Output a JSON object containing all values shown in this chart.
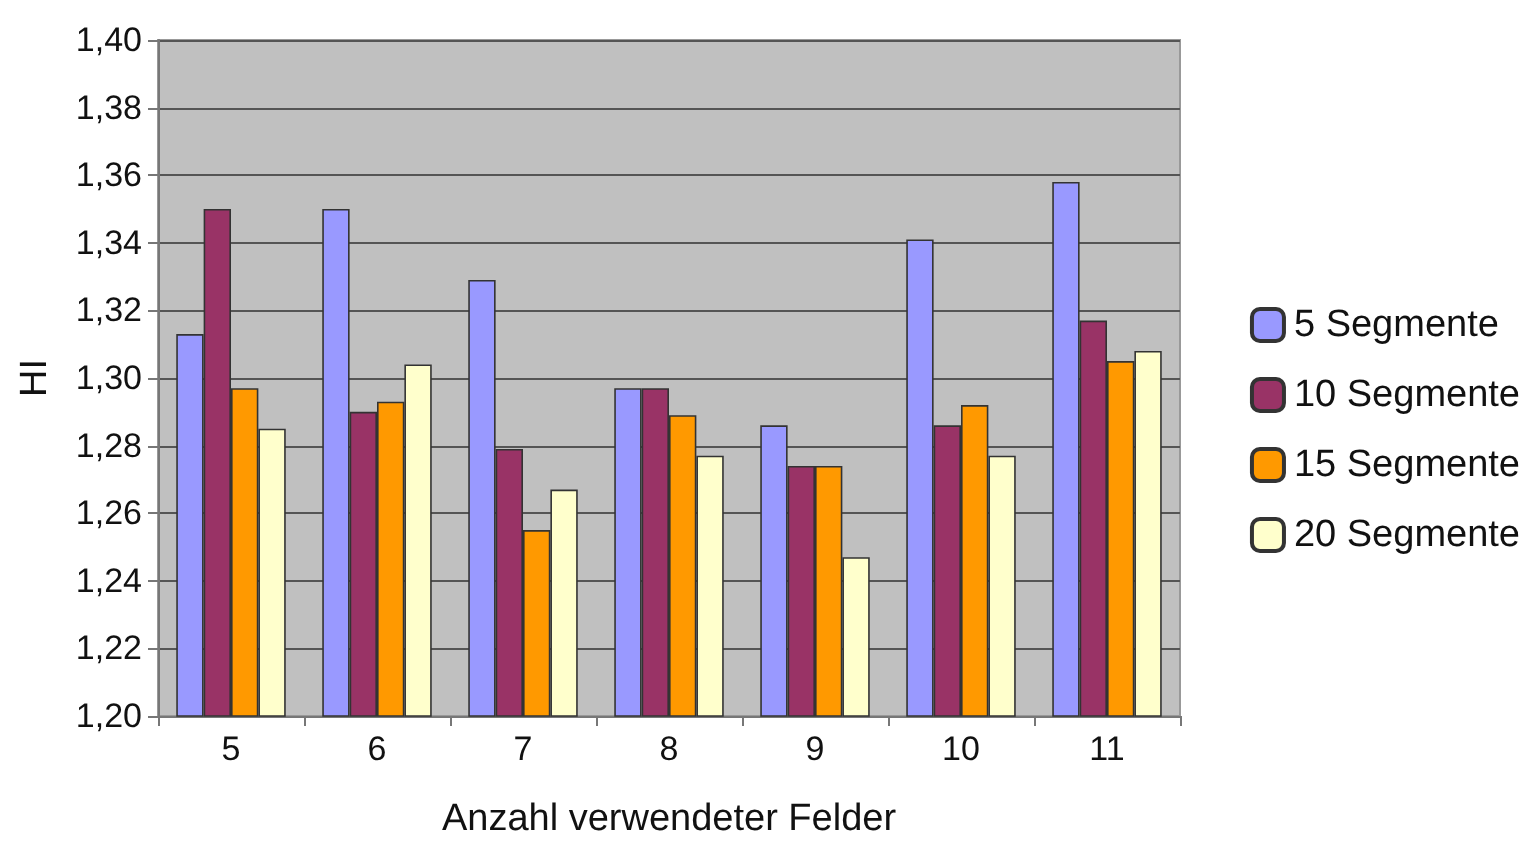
{
  "chart_data": {
    "type": "bar",
    "xlabel": "Anzahl verwendeter Felder",
    "ylabel": "HI",
    "categories": [
      "5",
      "6",
      "7",
      "8",
      "9",
      "10",
      "11"
    ],
    "series": [
      {
        "name": "5 Segmente",
        "color": "#9999ff",
        "values": [
          1.313,
          1.35,
          1.329,
          1.297,
          1.286,
          1.341,
          1.358
        ]
      },
      {
        "name": "10 Segmente",
        "color": "#993366",
        "values": [
          1.35,
          1.29,
          1.279,
          1.297,
          1.274,
          1.286,
          1.317
        ]
      },
      {
        "name": "15 Segmente",
        "color": "#ff9900",
        "values": [
          1.297,
          1.293,
          1.255,
          1.289,
          1.274,
          1.292,
          1.305
        ]
      },
      {
        "name": "20 Segmente",
        "color": "#ffffcc",
        "values": [
          1.285,
          1.304,
          1.267,
          1.277,
          1.247,
          1.277,
          1.308
        ]
      }
    ],
    "ylim": [
      1.2,
      1.4
    ],
    "yticks": [
      {
        "value": 1.2,
        "label": "1,20"
      },
      {
        "value": 1.22,
        "label": "1,22"
      },
      {
        "value": 1.24,
        "label": "1,24"
      },
      {
        "value": 1.26,
        "label": "1,26"
      },
      {
        "value": 1.28,
        "label": "1,28"
      },
      {
        "value": 1.3,
        "label": "1,30"
      },
      {
        "value": 1.32,
        "label": "1,32"
      },
      {
        "value": 1.34,
        "label": "1,34"
      },
      {
        "value": 1.36,
        "label": "1,36"
      },
      {
        "value": 1.38,
        "label": "1,38"
      },
      {
        "value": 1.4,
        "label": "1,40"
      }
    ],
    "grid": "y",
    "legend": "right"
  }
}
